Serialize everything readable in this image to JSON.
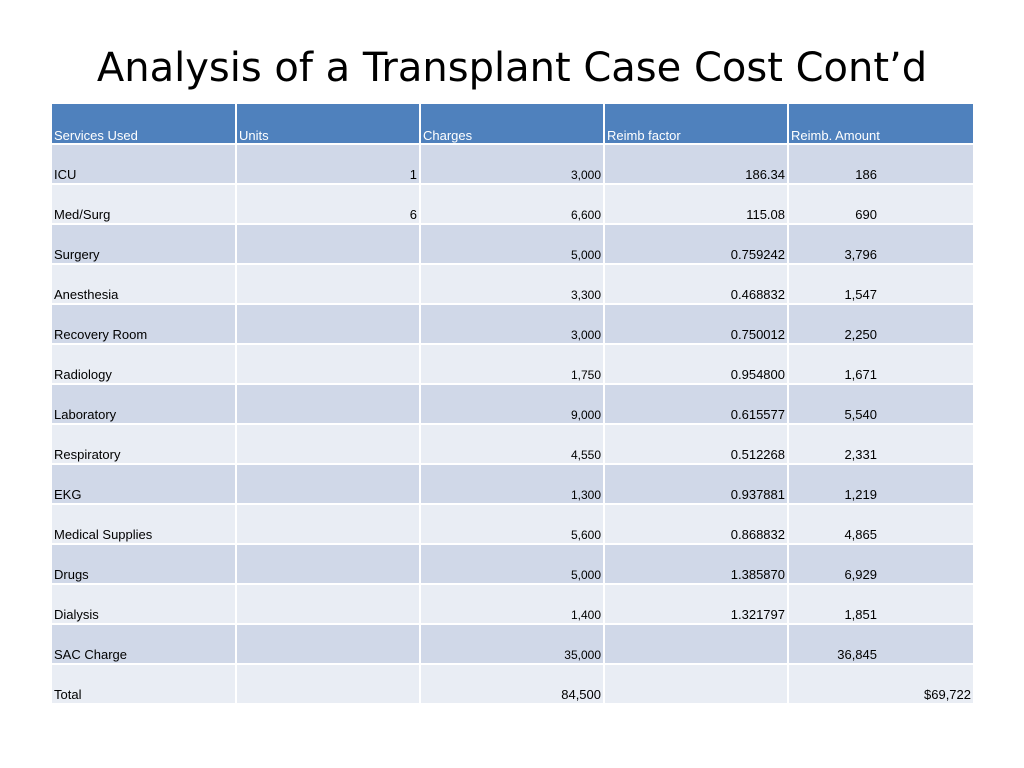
{
  "title": "Analysis of a Transplant Case Cost Cont’d",
  "table": {
    "headers": [
      "Services Used",
      "Units",
      "Charges",
      "Reimb factor",
      "Reimb. Amount"
    ],
    "rows": [
      {
        "service": "ICU",
        "units": "1",
        "charges": "3,000",
        "factor": "186.34",
        "amount": "186"
      },
      {
        "service": "Med/Surg",
        "units": "6",
        "charges": "6,600",
        "factor": "115.08",
        "amount": "690"
      },
      {
        "service": "Surgery",
        "units": "",
        "charges": "5,000",
        "factor": "0.759242",
        "amount": "3,796"
      },
      {
        "service": "Anesthesia",
        "units": "",
        "charges": "3,300",
        "factor": "0.468832",
        "amount": "1,547"
      },
      {
        "service": "Recovery Room",
        "units": "",
        "charges": "3,000",
        "factor": "0.750012",
        "amount": "2,250"
      },
      {
        "service": "Radiology",
        "units": "",
        "charges": "1,750",
        "factor": "0.954800",
        "amount": "1,671"
      },
      {
        "service": "Laboratory",
        "units": "",
        "charges": "9,000",
        "factor": "0.615577",
        "amount": "5,540"
      },
      {
        "service": "Respiratory",
        "units": "",
        "charges": "4,550",
        "factor": "0.512268",
        "amount": "2,331"
      },
      {
        "service": "EKG",
        "units": "",
        "charges": "1,300",
        "factor": "0.937881",
        "amount": "1,219"
      },
      {
        "service": "Medical Supplies",
        "units": "",
        "charges": "5,600",
        "factor": "0.868832",
        "amount": "4,865"
      },
      {
        "service": "Drugs",
        "units": "",
        "charges": "5,000",
        "factor": "1.385870",
        "amount": "6,929"
      },
      {
        "service": "Dialysis",
        "units": "",
        "charges": "1,400",
        "factor": "1.321797",
        "amount": "1,851"
      },
      {
        "service": "SAC Charge",
        "units": "",
        "charges": "35,000",
        "factor": "",
        "amount": "36,845"
      }
    ],
    "total": {
      "service": "Total",
      "units": "",
      "charges": "84,500",
      "factor": "",
      "amount": "$69,722"
    }
  },
  "colors": {
    "header_bg": "#4f81bd",
    "row_odd": "#d0d8e8",
    "row_even": "#e9edf4"
  }
}
